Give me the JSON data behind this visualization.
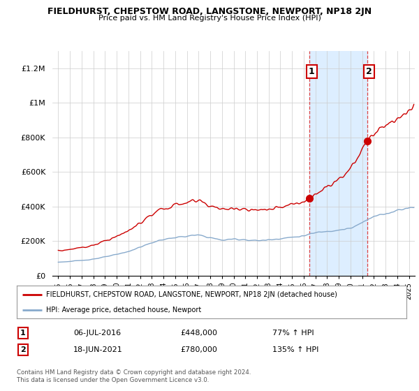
{
  "title": "FIELDHURST, CHEPSTOW ROAD, LANGSTONE, NEWPORT, NP18 2JN",
  "subtitle": "Price paid vs. HM Land Registry's House Price Index (HPI)",
  "ylabel_ticks": [
    "£0",
    "£200K",
    "£400K",
    "£600K",
    "£800K",
    "£1M",
    "£1.2M"
  ],
  "ytick_vals": [
    0,
    200000,
    400000,
    600000,
    800000,
    1000000,
    1200000
  ],
  "ylim": [
    0,
    1300000
  ],
  "xlim_start": 1994.5,
  "xlim_end": 2025.5,
  "red_line_color": "#cc0000",
  "blue_line_color": "#88aacc",
  "shade_color": "#ddeeff",
  "annotation_box_color": "#cc0000",
  "vline_color": "#dd4444",
  "sale1_x": 2016.51,
  "sale1_y": 448000,
  "sale1_label": "1",
  "sale2_x": 2021.46,
  "sale2_y": 780000,
  "sale2_label": "2",
  "legend_red_label": "FIELDHURST, CHEPSTOW ROAD, LANGSTONE, NEWPORT, NP18 2JN (detached house)",
  "legend_blue_label": "HPI: Average price, detached house, Newport",
  "table_row1": [
    "1",
    "06-JUL-2016",
    "£448,000",
    "77% ↑ HPI"
  ],
  "table_row2": [
    "2",
    "18-JUN-2021",
    "£780,000",
    "135% ↑ HPI"
  ],
  "copyright_text": "Contains HM Land Registry data © Crown copyright and database right 2024.\nThis data is licensed under the Open Government Licence v3.0.",
  "background_color": "#ffffff",
  "grid_color": "#cccccc"
}
